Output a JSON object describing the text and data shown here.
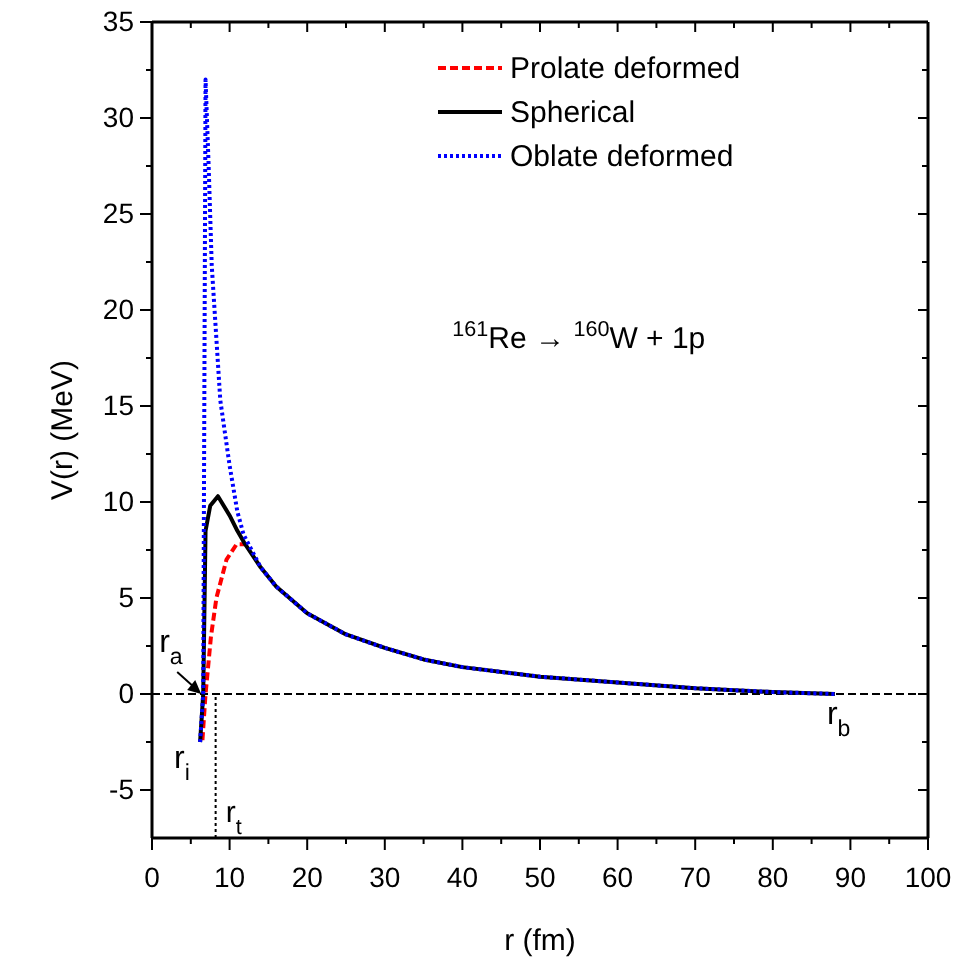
{
  "chart_data": {
    "type": "line",
    "xlabel": "r (fm)",
    "ylabel": "V(r) (MeV)",
    "xlim": [
      0,
      100
    ],
    "ylim": [
      -7.5,
      35
    ],
    "xticks": [
      0,
      10,
      20,
      30,
      40,
      50,
      60,
      70,
      80,
      90,
      100
    ],
    "yticks": [
      -5,
      0,
      5,
      10,
      15,
      20,
      25,
      30,
      35
    ],
    "legend": "top right",
    "grid": false,
    "series": [
      {
        "name": "Prolate deformed",
        "color": "#ff0000",
        "line_style": "dashed",
        "x": [
          6.5,
          6.9,
          7.6,
          8.3,
          9.6,
          10.9,
          12
        ],
        "values": [
          -2.4,
          0,
          3,
          5,
          7,
          7.8,
          7.8
        ]
      },
      {
        "name": "Spherical",
        "color": "#000000",
        "line_style": "solid",
        "x": [
          6.2,
          6.6,
          6.9,
          7.5,
          8.5,
          10,
          11,
          12,
          14,
          16,
          20,
          25,
          30,
          35,
          40,
          50,
          60,
          70,
          80,
          88
        ],
        "values": [
          -2.5,
          0,
          8.5,
          9.8,
          10.3,
          9.3,
          8.5,
          7.8,
          6.6,
          5.6,
          4.2,
          3.1,
          2.4,
          1.8,
          1.4,
          0.9,
          0.6,
          0.3,
          0.1,
          0
        ]
      },
      {
        "name": "Oblate deformed",
        "color": "#0000ff",
        "line_style": "dotted",
        "x": [
          6.2,
          6.6,
          6.9,
          7.3,
          7.7,
          8.8,
          10,
          11,
          11.8,
          14,
          16,
          20,
          25,
          30,
          35,
          40,
          50,
          60,
          70,
          80,
          88
        ],
        "values": [
          -2.5,
          0,
          32,
          27.5,
          22.3,
          15.3,
          11.9,
          9.5,
          8.3,
          6.6,
          5.6,
          4.2,
          3.1,
          2.4,
          1.8,
          1.4,
          0.9,
          0.6,
          0.3,
          0.1,
          0
        ]
      }
    ],
    "ref_lines": [
      {
        "axis": "y",
        "value": 0,
        "line_style": "dashed",
        "color": "#000000"
      },
      {
        "axis": "x",
        "value": 8.2,
        "label": "r$_{t}$",
        "line_style": "dotted",
        "color": "#000000"
      }
    ],
    "annotations": [
      {
        "text": "r$_{a}$",
        "x": 6.6,
        "y": 0
      },
      {
        "text": "r$_{i}$",
        "x": 6.2,
        "y": -2.5
      },
      {
        "text": "r$_{b}$",
        "x": 88,
        "y": 0
      },
      "$^{161}$Re → $^{160}$W + 1p"
    ]
  }
}
